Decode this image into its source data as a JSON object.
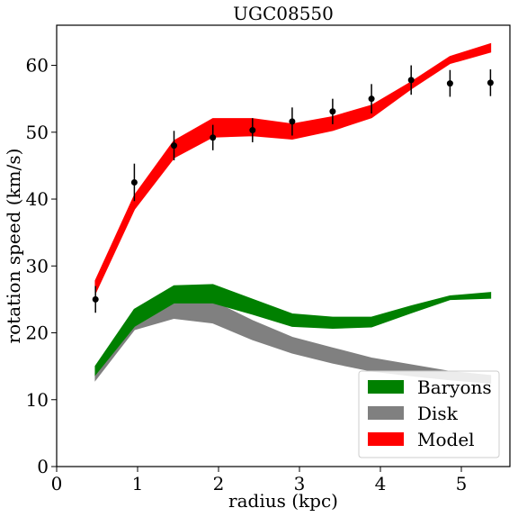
{
  "chart_data": {
    "type": "area",
    "title": "UGC08550",
    "xlabel": "radius (kpc)",
    "ylabel": "rotation speed (km/s)",
    "xlim": [
      0,
      5.6
    ],
    "ylim": [
      0,
      66
    ],
    "xticks": [
      0,
      1,
      2,
      3,
      4,
      5
    ],
    "yticks": [
      0,
      10,
      20,
      30,
      40,
      50,
      60
    ],
    "grid": false,
    "legend_position": "bottom-right",
    "bands": [
      {
        "name": "Disk",
        "color": "#808080",
        "x": [
          0.48,
          0.96,
          1.45,
          1.93,
          2.42,
          2.91,
          3.41,
          3.89,
          4.38,
          4.86,
          5.36
        ],
        "lower": [
          13.0,
          20.5,
          22.2,
          21.5,
          19.0,
          17.0,
          15.5,
          14.3,
          13.6,
          13.0,
          12.5
        ],
        "upper": [
          14.0,
          23.0,
          25.3,
          24.7,
          21.8,
          19.3,
          17.7,
          16.2,
          15.2,
          14.2,
          13.6
        ]
      },
      {
        "name": "Baryons",
        "color": "#008000",
        "x": [
          0.48,
          0.96,
          1.45,
          1.93,
          2.42,
          2.91,
          3.41,
          3.89,
          4.38,
          4.86,
          5.36
        ],
        "lower": [
          13.8,
          21.0,
          24.5,
          24.5,
          22.8,
          21.0,
          20.7,
          20.9,
          23.0,
          25.0,
          25.2
        ],
        "upper": [
          15.0,
          23.5,
          27.0,
          27.2,
          25.0,
          22.8,
          22.3,
          22.3,
          24.0,
          25.5,
          26.0
        ]
      },
      {
        "name": "Model",
        "color": "#ff0000",
        "x": [
          0.48,
          0.96,
          1.45,
          1.93,
          2.42,
          2.91,
          3.41,
          3.89,
          4.38,
          4.86,
          5.36
        ],
        "lower": [
          26.0,
          38.5,
          46.2,
          49.3,
          49.5,
          49.0,
          50.3,
          52.2,
          56.5,
          60.3,
          62.0
        ],
        "upper": [
          27.8,
          40.5,
          48.7,
          52.0,
          52.0,
          51.2,
          52.3,
          54.0,
          57.5,
          61.3,
          63.2
        ]
      }
    ],
    "observations": {
      "name": "",
      "x": [
        0.48,
        0.96,
        1.45,
        1.93,
        2.42,
        2.91,
        3.41,
        3.89,
        4.38,
        4.86,
        5.36
      ],
      "y": [
        25.0,
        42.5,
        48.0,
        49.2,
        50.3,
        51.6,
        53.1,
        55.0,
        57.8,
        57.3,
        57.4
      ],
      "err": [
        2.0,
        2.8,
        2.2,
        1.9,
        1.8,
        2.1,
        1.9,
        2.2,
        2.2,
        2.0,
        2.0
      ]
    },
    "legend": [
      {
        "label": "Baryons",
        "color": "#008000"
      },
      {
        "label": "Disk",
        "color": "#808080"
      },
      {
        "label": "Model",
        "color": "#ff0000"
      }
    ]
  }
}
